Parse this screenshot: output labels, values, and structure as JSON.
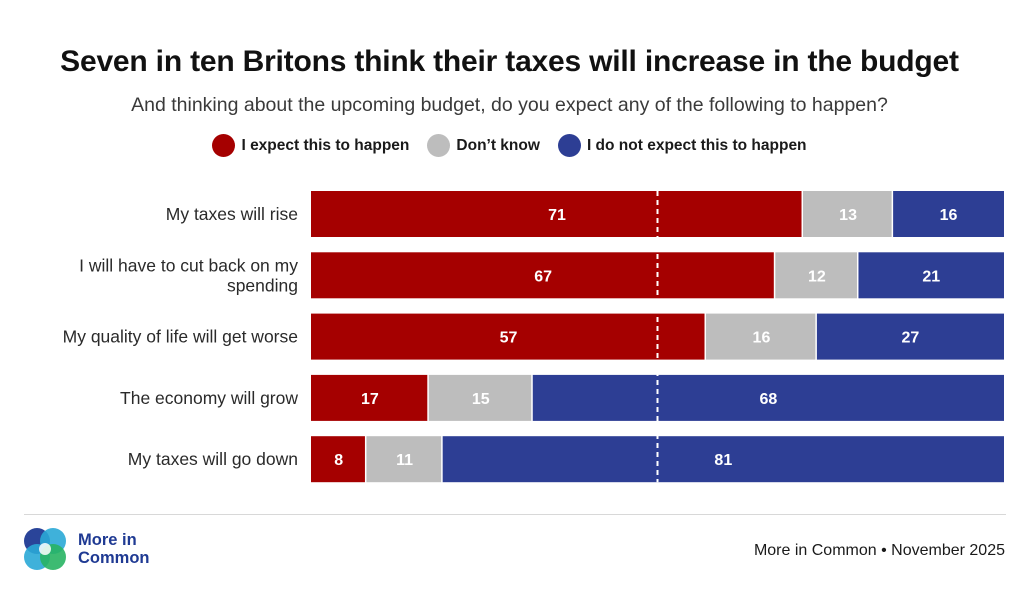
{
  "chart_data": {
    "type": "bar",
    "orientation": "horizontal",
    "stacked": true,
    "title": "Seven in ten Britons think their taxes will increase in the budget",
    "subtitle": "And thinking about the upcoming budget, do you expect any of the following to happen?",
    "categories": [
      "My taxes will rise",
      "I will have to cut back on my spending",
      "My quality of life will get worse",
      "The economy will grow",
      "My taxes will go down"
    ],
    "category_lines": [
      [
        "My taxes will rise"
      ],
      [
        "I will have to cut back on my",
        "spending"
      ],
      [
        "My quality of life will get worse"
      ],
      [
        "The economy will grow"
      ],
      [
        "My taxes will go down"
      ]
    ],
    "series": [
      {
        "name": "I expect this to happen",
        "color": "#a50000",
        "values": [
          71,
          67,
          57,
          17,
          8
        ]
      },
      {
        "name": "Don’t know",
        "color": "#bdbdbd",
        "values": [
          13,
          12,
          16,
          15,
          11
        ]
      },
      {
        "name": "I do not expect this to happen",
        "color": "#2d3e94",
        "values": [
          16,
          21,
          27,
          68,
          81
        ]
      }
    ],
    "xlim": [
      0,
      100
    ],
    "reference_line": 50,
    "legend_position": "top-center",
    "grid": false
  },
  "footer": {
    "logo_line1": "More in",
    "logo_line2": "Common",
    "source": "More in Common • November 2025"
  },
  "logo_colors": [
    "#1f3a93",
    "#2aa8d6",
    "#28b463"
  ]
}
